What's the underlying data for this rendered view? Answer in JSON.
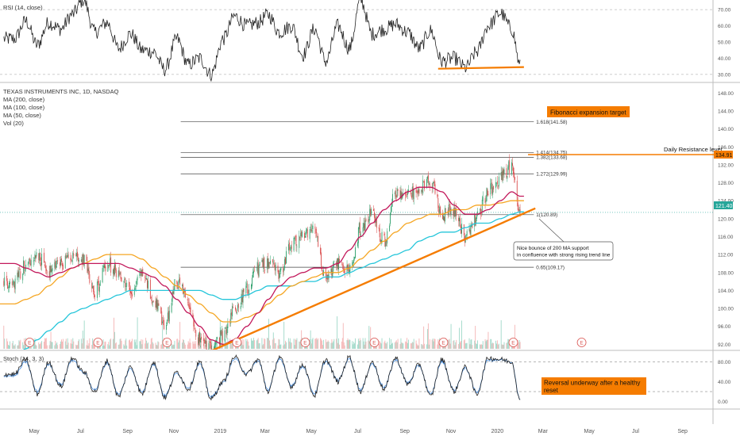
{
  "colors": {
    "ma200": "#26c6da",
    "ma100": "#f5a623",
    "ma50": "#c2185b",
    "rsi": "#222222",
    "stoch_k": "#222222",
    "stoch_d": "#4a90e2",
    "annotation": "#f57c00",
    "vol_up": "#9ed8c8",
    "vol_down": "#f4b4b4",
    "candle_up": "#2e9f6b",
    "candle_down": "#d94b4b"
  },
  "legend": {
    "rsi": "RSI (14, close)",
    "title": "TEXAS INSTRUMENTS INC, 1D, NASDAQ",
    "ma200": "MA (200, close)",
    "ma100": "MA (100, close)",
    "ma50": "MA (50, close)",
    "vol": "Vol (20)",
    "stoch": "Stoch (14, 3, 3)"
  },
  "annotations": {
    "fib_target": "Fibonacci expansion target",
    "resistance": "Daily Resistance level",
    "ma_bounce": [
      "Nice bounce of 200 MA support",
      "in confluence with strong rising trend line"
    ],
    "reversal": [
      "Reversal underway after a healthy",
      "reset"
    ]
  },
  "price_tags": {
    "resistance": "134.91",
    "current": "121.40"
  },
  "chart_data": [
    {
      "type": "line",
      "name": "RSI",
      "yticks": [
        "70.00",
        "60.00",
        "50.00",
        "40.00",
        "30.00"
      ],
      "ylim": [
        26,
        75
      ],
      "levels": [
        70,
        30
      ],
      "x": [
        "2018-04-05",
        "2018-04-20",
        "2018-05-05",
        "2018-05-20",
        "2018-06-05",
        "2018-06-20",
        "2018-07-05",
        "2018-07-20",
        "2018-08-05",
        "2018-08-20",
        "2018-09-05",
        "2018-09-20",
        "2018-10-05",
        "2018-10-20",
        "2018-11-05",
        "2018-11-20",
        "2018-12-05",
        "2018-12-20",
        "2019-01-05",
        "2019-01-20",
        "2019-02-05",
        "2019-02-20",
        "2019-03-05",
        "2019-03-20",
        "2019-04-05",
        "2019-04-20",
        "2019-05-05",
        "2019-05-20",
        "2019-06-05",
        "2019-06-20",
        "2019-07-05",
        "2019-07-20",
        "2019-08-05",
        "2019-08-20",
        "2019-09-05",
        "2019-09-20",
        "2019-10-05",
        "2019-10-20",
        "2019-11-05",
        "2019-11-20",
        "2019-12-05",
        "2019-12-20",
        "2020-01-05",
        "2020-01-20",
        "2020-01-31"
      ],
      "values": [
        52,
        63,
        48,
        62,
        58,
        67,
        76,
        56,
        62,
        46,
        55,
        45,
        44,
        33,
        52,
        36,
        40,
        30,
        52,
        66,
        60,
        62,
        67,
        56,
        60,
        42,
        58,
        38,
        60,
        46,
        76,
        55,
        58,
        61,
        56,
        46,
        57,
        38,
        40,
        34,
        44,
        60,
        68,
        58,
        35
      ],
      "support_line": {
        "x": [
          "2019-10-15",
          "2020-02-05"
        ],
        "y": [
          33.5,
          34.5
        ]
      }
    },
    {
      "type": "candlestick",
      "name": "TXN daily",
      "yticks": [
        "148.00",
        "144.00",
        "140.00",
        "136.00",
        "132.00",
        "128.00",
        "124.00",
        "120.00",
        "116.00",
        "112.00",
        "108.00",
        "104.00",
        "100.00",
        "96.00",
        "92.00"
      ],
      "ylim": [
        91,
        150
      ],
      "close": [
        106,
        110,
        112,
        108,
        110,
        112,
        111,
        104,
        110,
        108,
        104,
        108,
        102,
        96,
        106,
        101,
        93,
        91,
        94,
        100,
        104,
        109,
        110,
        108,
        114,
        116,
        117,
        106,
        110,
        108,
        118,
        121,
        115,
        126,
        125,
        127,
        128,
        121,
        122,
        116,
        120,
        126,
        129,
        132,
        120.5
      ],
      "fib_levels": [
        {
          "label": "1.618(141.58)",
          "value": 141.58
        },
        {
          "label": "1.414(134.75)",
          "value": 134.75
        },
        {
          "label": "1.382(133.68)",
          "value": 133.68
        },
        {
          "label": "1.272(129.99)",
          "value": 129.99
        },
        {
          "label": "1(120.89)",
          "value": 120.89
        },
        {
          "label": "0.65(109.17)",
          "value": 109.17
        }
      ],
      "ma200": [
        89,
        91,
        93,
        95,
        97,
        99,
        100,
        101,
        102,
        103,
        104,
        104,
        104,
        104,
        104,
        104,
        104,
        103,
        102,
        102,
        103,
        104,
        105,
        105,
        105,
        106,
        106,
        107,
        107,
        108,
        109,
        110,
        111,
        112,
        113,
        115,
        116,
        117,
        117,
        118,
        119,
        119,
        120,
        121,
        121.5
      ],
      "ma100": [
        101,
        102,
        103,
        105,
        107,
        109,
        110,
        111,
        112,
        112,
        112,
        111,
        109,
        107,
        105,
        103,
        101,
        99,
        97,
        97,
        98,
        99,
        101,
        103,
        105,
        106,
        107,
        108,
        108,
        109,
        111,
        113,
        115,
        117,
        119,
        120,
        121,
        121,
        122,
        122,
        123,
        123,
        123.5,
        124,
        124
      ],
      "ma50": [
        110,
        109,
        108,
        107,
        108,
        109,
        110,
        110,
        110,
        110,
        109,
        108,
        107,
        105,
        102,
        99,
        96,
        93,
        92,
        93,
        96,
        99,
        102,
        105,
        107,
        108,
        109,
        109,
        110,
        113,
        116,
        119,
        122,
        124,
        126,
        127,
        127,
        126,
        123,
        121,
        121,
        122,
        124,
        126,
        125
      ],
      "trendline": {
        "x": [
          "2018-12-21",
          "2020-02-20"
        ],
        "y": [
          90.6,
          122.3
        ]
      },
      "earnings_markers": [
        "2018-04-25",
        "2018-07-24",
        "2018-10-23",
        "2019-01-23",
        "2019-04-23",
        "2019-07-23",
        "2019-10-22",
        "2020-01-22",
        "2020-04-21"
      ],
      "earnings_label": "E"
    },
    {
      "type": "line",
      "name": "Stoch",
      "yticks": [
        "80.00",
        "40.00",
        "0.00"
      ],
      "ylim": [
        -12,
        100
      ],
      "levels": [
        80,
        20
      ],
      "x": [
        "2018-04-05",
        "2018-04-20",
        "2018-05-05",
        "2018-05-20",
        "2018-06-05",
        "2018-06-20",
        "2018-07-05",
        "2018-07-20",
        "2018-08-05",
        "2018-08-20",
        "2018-09-05",
        "2018-09-20",
        "2018-10-05",
        "2018-10-20",
        "2018-11-05",
        "2018-11-20",
        "2018-12-05",
        "2018-12-20",
        "2019-01-05",
        "2019-01-20",
        "2019-02-05",
        "2019-02-20",
        "2019-03-05",
        "2019-03-20",
        "2019-04-05",
        "2019-04-20",
        "2019-05-05",
        "2019-05-20",
        "2019-06-05",
        "2019-06-20",
        "2019-07-05",
        "2019-07-20",
        "2019-08-05",
        "2019-08-20",
        "2019-09-05",
        "2019-09-20",
        "2019-10-05",
        "2019-10-20",
        "2019-11-05",
        "2019-11-20",
        "2019-12-05",
        "2019-12-20",
        "2020-01-05",
        "2020-01-20",
        "2020-01-31"
      ],
      "k": [
        55,
        85,
        15,
        80,
        30,
        88,
        60,
        20,
        82,
        10,
        70,
        15,
        80,
        8,
        60,
        25,
        80,
        5,
        40,
        90,
        55,
        85,
        20,
        90,
        30,
        75,
        12,
        85,
        40,
        90,
        20,
        80,
        25,
        88,
        35,
        75,
        10,
        85,
        20,
        70,
        15,
        88,
        85,
        80,
        0
      ],
      "d": [
        52,
        80,
        20,
        76,
        34,
        84,
        58,
        24,
        78,
        14,
        66,
        19,
        76,
        12,
        57,
        28,
        76,
        9,
        38,
        86,
        57,
        82,
        24,
        86,
        33,
        71,
        16,
        81,
        43,
        86,
        24,
        76,
        29,
        84,
        38,
        72,
        14,
        81,
        23,
        67,
        19,
        84,
        84,
        80,
        2
      ]
    }
  ],
  "x_axis": {
    "labels": [
      "May",
      "Jul",
      "Sep",
      "Nov",
      "2019",
      "Mar",
      "May",
      "Jul",
      "Sep",
      "Nov",
      "2020",
      "Mar",
      "May",
      "Jul",
      "Sep"
    ],
    "label_dates": [
      "2018-05-01",
      "2018-07-01",
      "2018-09-01",
      "2018-11-01",
      "2019-01-01",
      "2019-03-01",
      "2019-05-01",
      "2019-07-01",
      "2019-09-01",
      "2019-11-01",
      "2020-01-01",
      "2020-03-01",
      "2020-05-01",
      "2020-07-01",
      "2020-09-01"
    ],
    "domain": [
      "2018-03-17",
      "2020-10-11"
    ]
  }
}
